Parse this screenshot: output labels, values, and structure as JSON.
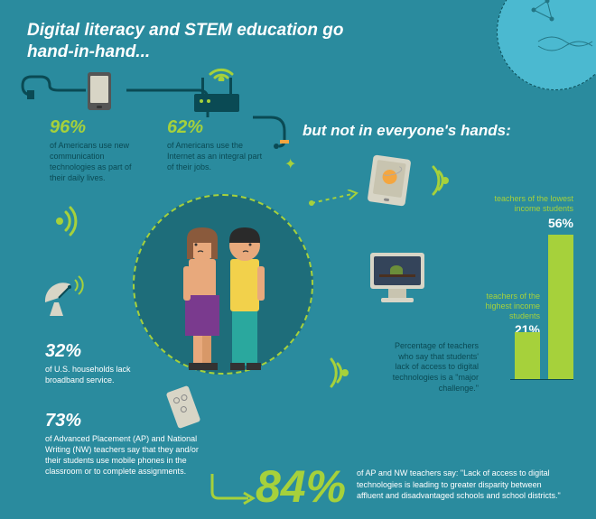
{
  "title": {
    "main": "Digital literacy and STEM education go\nhand-in-hand...",
    "subtitle": "but not in everyone's hands:"
  },
  "top_stats": {
    "stat1": {
      "percent": "96%",
      "text": "of Americans use new communication technologies as part of their daily lives."
    },
    "stat2": {
      "percent": "62%",
      "text": "of Americans use the Internet as an integral part of their jobs."
    }
  },
  "left_stats": {
    "stat1": {
      "percent": "32%",
      "text": "of U.S. households lack broadband service."
    },
    "stat2": {
      "percent": "73%",
      "text": "of Advanced Placement (AP) and National Writing (NW) teachers say that they and/or their students use mobile phones in the classroom or to complete assignments."
    }
  },
  "chart": {
    "percent_text_label": "Percentage of teachers who say that students' lack of access to digital technologies is a \"major challenge.\"",
    "bars": {
      "low": {
        "label": "teachers of the lowest income students",
        "percent": "56%",
        "height": 160
      },
      "high": {
        "label": "teachers of the highest income students",
        "percent": "21%",
        "height": 60
      }
    }
  },
  "bottom_quote": {
    "percent": "84%",
    "text": "of AP and NW teachers say: \"Lack of access to digital technologies is leading to greater disparity between affluent and disadvantaged schools and school districts.\""
  },
  "colors": {
    "bg": "#2a8b9e",
    "accent": "#a6d13b",
    "dark": "#0a4a54",
    "inner": "#1e6d7a",
    "device": "#e8e6d9",
    "light_teal": "#4bb9d0"
  }
}
